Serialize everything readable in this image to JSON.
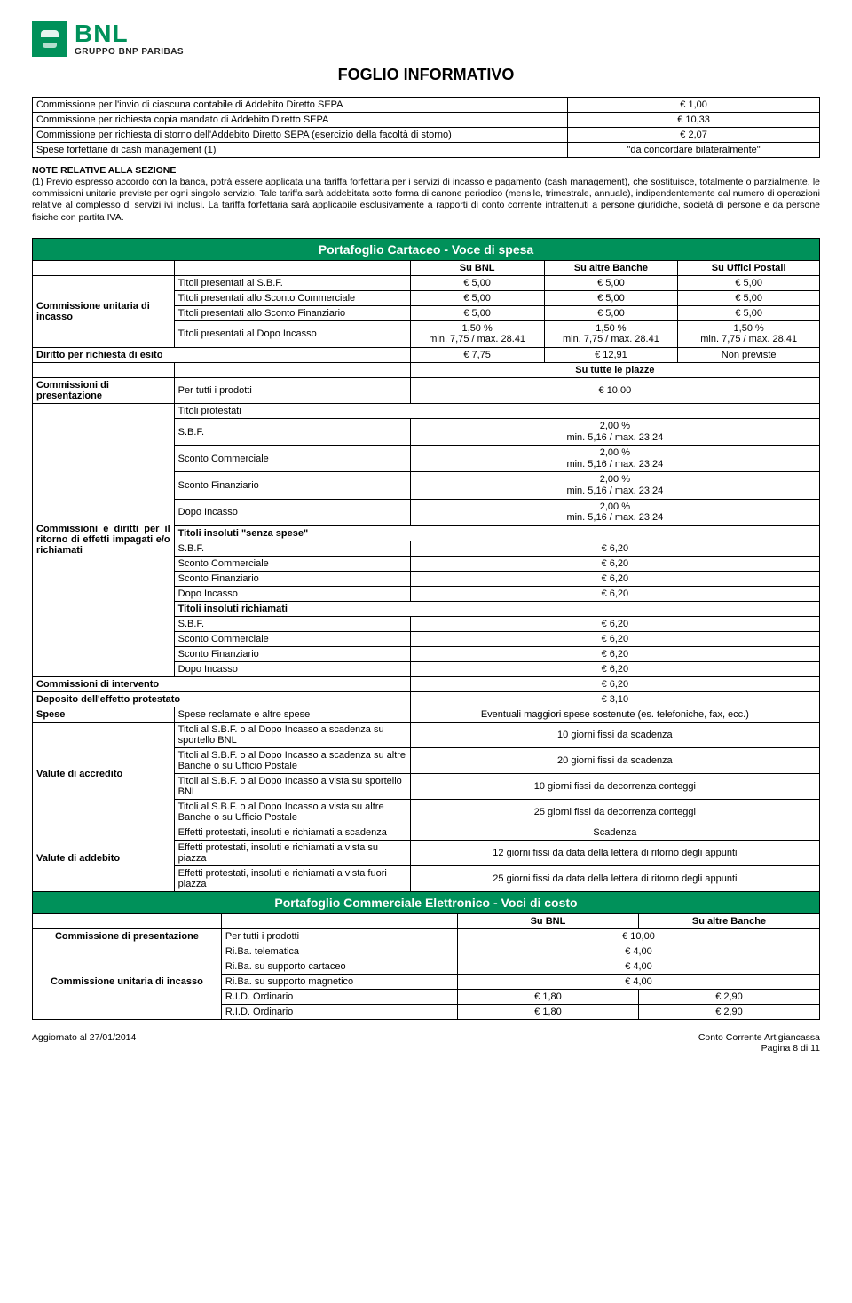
{
  "brand": {
    "name": "BNL",
    "sub": "GRUPPO BNP PARIBAS",
    "accent": "#00915a"
  },
  "title": "FOGLIO INFORMATIVO",
  "topTable": {
    "rows": [
      {
        "label": "Commissione per l'invio di ciascuna contabile di Addebito Diretto SEPA",
        "value": "€ 1,00"
      },
      {
        "label": "Commissione per richiesta copia mandato di Addebito Diretto SEPA",
        "value": "€ 10,33"
      },
      {
        "label": "Commissione per richiesta di storno dell'Addebito Diretto SEPA  (esercizio della facoltà di storno)",
        "value": "€ 2,07"
      },
      {
        "label": "Spese forfettarie di cash management (1)",
        "value": "\"da concordare bilateralmente\""
      }
    ]
  },
  "note": {
    "title": "NOTE RELATIVE ALLA SEZIONE",
    "body": "(1) Previo espresso accordo con la banca, potrà essere applicata una tariffa forfettaria per i servizi di incasso e pagamento (cash management), che sostituisce, totalmente o parzialmente, le commissioni unitarie previste per ogni singolo servizio. Tale tariffa sarà addebitata sotto forma di canone periodico (mensile, trimestrale, annuale), indipendentemente dal numero di operazioni relative al complesso di servizi ivi inclusi. La tariffa forfettaria sarà applicabile esclusivamente a rapporti di conto corrente intrattenuti a persone giuridiche, società di persone e da persone fisiche con partita IVA."
  },
  "section1": {
    "bar": "Portafoglio Cartaceo - Voce di spesa",
    "cols": {
      "c1": "Su BNL",
      "c2": "Su altre Banche",
      "c3": "Su Uffici Postali"
    },
    "unitaria": {
      "label": "Commissione unitaria di incasso",
      "rows": [
        {
          "label": "Titoli presentati al S.B.F.",
          "v1": "€ 5,00",
          "v2": "€ 5,00",
          "v3": "€ 5,00"
        },
        {
          "label": "Titoli presentati allo Sconto Commerciale",
          "v1": "€ 5,00",
          "v2": "€ 5,00",
          "v3": "€ 5,00"
        },
        {
          "label": "Titoli presentati allo Sconto Finanziario",
          "v1": "€ 5,00",
          "v2": "€ 5,00",
          "v3": "€ 5,00"
        },
        {
          "label": "Titoli presentati al Dopo Incasso",
          "v1": "1,50 %\nmin. 7,75 / max. 28.41",
          "v2": "1,50 %\nmin. 7,75 / max. 28.41",
          "v3": "1,50 %\nmin. 7,75 / max. 28.41"
        }
      ]
    },
    "esito": {
      "label": "Diritto per richiesta di esito",
      "v1": "€ 7,75",
      "v2": "€ 12,91",
      "v3": "Non previste"
    },
    "sutte": "Su tutte le piazze",
    "presentazione": {
      "label": "Commissioni di presentazione",
      "desc": "Per tutti i prodotti",
      "val": "€ 10,00"
    },
    "ritorno": {
      "label": "Commissioni e diritti per il ritorno di effetti impagati e/o richiamati",
      "h1": "Titoli protestati",
      "rows1": [
        {
          "label": "S.B.F.",
          "val": "2,00 %\nmin. 5,16 / max. 23,24"
        },
        {
          "label": "Sconto Commerciale",
          "val": "2,00 %\nmin. 5,16 / max. 23,24"
        },
        {
          "label": "Sconto Finanziario",
          "val": "2,00 %\nmin. 5,16 / max. 23,24"
        },
        {
          "label": "Dopo Incasso",
          "val": "2,00 %\nmin. 5,16 / max. 23,24"
        }
      ],
      "h2": "Titoli insoluti \"senza spese\"",
      "rows2": [
        {
          "label": "S.B.F.",
          "val": "€ 6,20"
        },
        {
          "label": "Sconto Commerciale",
          "val": "€ 6,20"
        },
        {
          "label": "Sconto Finanziario",
          "val": "€ 6,20"
        },
        {
          "label": "Dopo Incasso",
          "val": "€ 6,20"
        }
      ],
      "h3": "Titoli insoluti richiamati",
      "rows3": [
        {
          "label": "S.B.F.",
          "val": "€ 6,20"
        },
        {
          "label": "Sconto Commerciale",
          "val": "€ 6,20"
        },
        {
          "label": "Sconto Finanziario",
          "val": "€ 6,20"
        },
        {
          "label": "Dopo Incasso",
          "val": "€ 6,20"
        }
      ]
    },
    "intervento": {
      "label": "Commissioni di intervento",
      "val": "€ 6,20"
    },
    "deposito": {
      "label": "Deposito dell'effetto protestato",
      "val": "€ 3,10"
    },
    "spese": {
      "label": "Spese",
      "desc": "Spese reclamate e altre spese",
      "val": "Eventuali maggiori spese sostenute (es. telefoniche, fax, ecc.)"
    },
    "accredito": {
      "label": "Valute di accredito",
      "rows": [
        {
          "label": "Titoli al S.B.F. o al Dopo Incasso a scadenza su sportello BNL",
          "val": "10 giorni fissi da scadenza"
        },
        {
          "label": "Titoli al S.B.F. o al Dopo Incasso a scadenza su altre Banche o su Ufficio Postale",
          "val": "20 giorni fissi da scadenza"
        },
        {
          "label": "Titoli al S.B.F. o al Dopo Incasso a vista su sportello BNL",
          "val": "10 giorni fissi da decorrenza conteggi"
        },
        {
          "label": "Titoli al S.B.F. o al Dopo Incasso a vista su altre Banche o su Ufficio Postale",
          "val": "25 giorni fissi da decorrenza conteggi"
        }
      ]
    },
    "addebito": {
      "label": "Valute di addebito",
      "rows": [
        {
          "label": "Effetti protestati, insoluti e richiamati a scadenza",
          "val": "Scadenza"
        },
        {
          "label": "Effetti protestati, insoluti e richiamati a vista su piazza",
          "val": "12 giorni fissi da data della lettera di ritorno degli appunti"
        },
        {
          "label": "Effetti protestati, insoluti e richiamati a vista fuori piazza",
          "val": "25 giorni fissi da data della lettera di ritorno degli appunti"
        }
      ]
    }
  },
  "section2": {
    "bar": "Portafoglio Commerciale Elettronico - Voci di costo",
    "cols": {
      "c1": "Su BNL",
      "c2": "Su altre Banche"
    },
    "presentazione": {
      "label": "Commissione di presentazione",
      "desc": "Per tutti i prodotti",
      "val": "€ 10,00"
    },
    "unitaria": {
      "label": "Commissione unitaria di incasso",
      "rows": [
        {
          "label": "Ri.Ba. telematica",
          "v1": "€ 4,00",
          "v2": ""
        },
        {
          "label": "Ri.Ba. su supporto cartaceo",
          "v1": "€ 4,00",
          "v2": ""
        },
        {
          "label": "Ri.Ba. su supporto magnetico",
          "v1": "€ 4,00",
          "v2": ""
        },
        {
          "label": "R.I.D. Ordinario",
          "v1": "€ 1,80",
          "v2": "€ 2,90"
        },
        {
          "label": "R.I.D. Ordinario",
          "v1": "€ 1,80",
          "v2": "€ 2,90"
        }
      ]
    }
  },
  "footer": {
    "left": "Aggiornato al  27/01/2014",
    "right1": "Conto Corrente Artigiancassa",
    "right2": "Pagina 8 di 11"
  }
}
